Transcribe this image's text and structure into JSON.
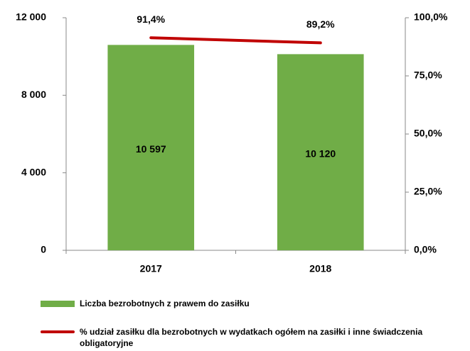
{
  "chart_data": {
    "type": "bar",
    "categories": [
      "2017",
      "2018"
    ],
    "series": [
      {
        "name": "Liczba bezrobotnych z prawem do zasiłku",
        "type": "bar",
        "color": "#70ad47",
        "values": [
          10597,
          10120
        ],
        "value_labels": [
          "10 597",
          "10 120"
        ]
      },
      {
        "name": "% udział zasiłku dla bezrobotnych w wydatkach ogółem na zasiłki i inne świadczenia obligatoryjne",
        "type": "line",
        "axis": "y2",
        "color": "#c00000",
        "values": [
          91.4,
          89.2
        ],
        "value_labels": [
          "91,4%",
          "89,2%"
        ]
      }
    ],
    "ylim": [
      0,
      12000
    ],
    "yticks": [
      0,
      {
        "value": 4000,
        "label": "4 000"
      },
      {
        "value": 8000,
        "label": "8 000"
      },
      {
        "value": 12000,
        "label": "12 000"
      }
    ],
    "y2lim": [
      0,
      100
    ],
    "y2ticks": [
      {
        "value": 0,
        "label": "0,0%"
      },
      {
        "value": 25,
        "label": "25,0%"
      },
      {
        "value": 50,
        "label": "50,0%"
      },
      {
        "value": 75,
        "label": "75,0%"
      },
      {
        "value": 100,
        "label": "100,0%"
      }
    ],
    "grid": false,
    "legend": "bottom"
  }
}
